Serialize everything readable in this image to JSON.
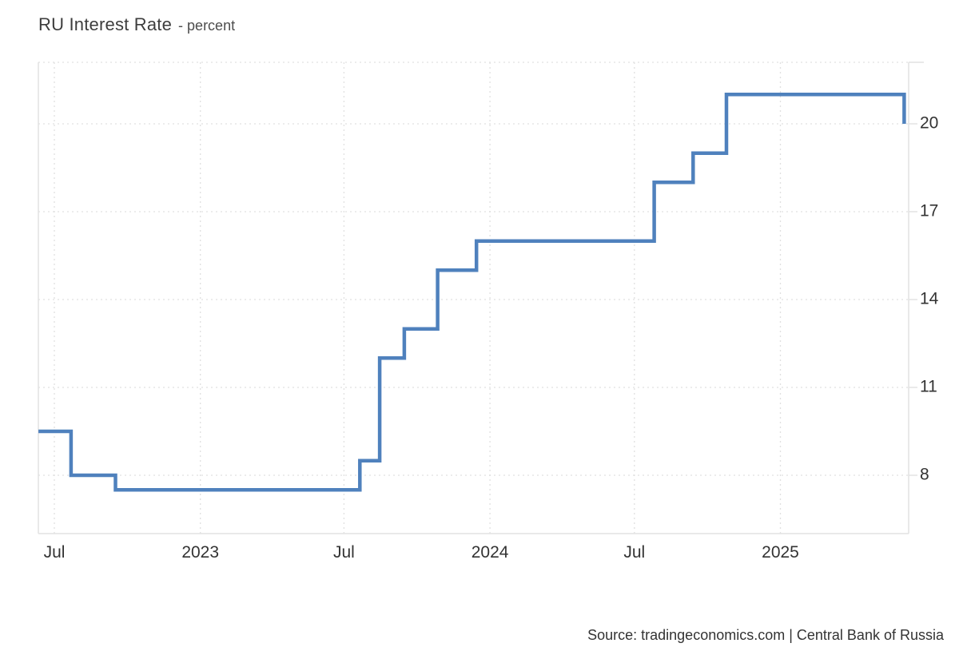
{
  "header": {
    "title": "RU Interest Rate",
    "subtitle": "- percent"
  },
  "chart_data": {
    "type": "line",
    "step": true,
    "title": "RU Interest Rate",
    "unit_label": "percent",
    "legend": false,
    "grid": "dotted",
    "line_color": "#4f81bd",
    "y_axis": {
      "side": "right",
      "ticks": [
        20,
        17,
        14,
        11,
        8
      ]
    },
    "x_axis": {
      "ticks": [
        {
          "label": "Jul",
          "date": "2022-07-01"
        },
        {
          "label": "2023",
          "date": "2023-01-01"
        },
        {
          "label": "Jul",
          "date": "2023-07-01"
        },
        {
          "label": "2024",
          "date": "2024-01-01"
        },
        {
          "label": "Jul",
          "date": "2024-07-01"
        },
        {
          "label": "2025",
          "date": "2025-01-01"
        }
      ]
    },
    "series": [
      {
        "name": "RU Interest Rate",
        "color": "#4f81bd",
        "points": [
          {
            "date": "2022-06-11",
            "value": 9.5
          },
          {
            "date": "2022-07-22",
            "value": 8
          },
          {
            "date": "2022-09-16",
            "value": 7.5
          },
          {
            "date": "2023-07-21",
            "value": 8.5
          },
          {
            "date": "2023-08-15",
            "value": 12
          },
          {
            "date": "2023-09-15",
            "value": 13
          },
          {
            "date": "2023-10-27",
            "value": 15
          },
          {
            "date": "2023-12-15",
            "value": 16
          },
          {
            "date": "2024-07-26",
            "value": 18
          },
          {
            "date": "2024-09-13",
            "value": 19
          },
          {
            "date": "2024-10-25",
            "value": 21
          },
          {
            "date": "2025-06-06",
            "value": 20
          }
        ]
      }
    ]
  },
  "source": {
    "text": "Source: tradingeconomics.com | Central Bank of Russia"
  }
}
